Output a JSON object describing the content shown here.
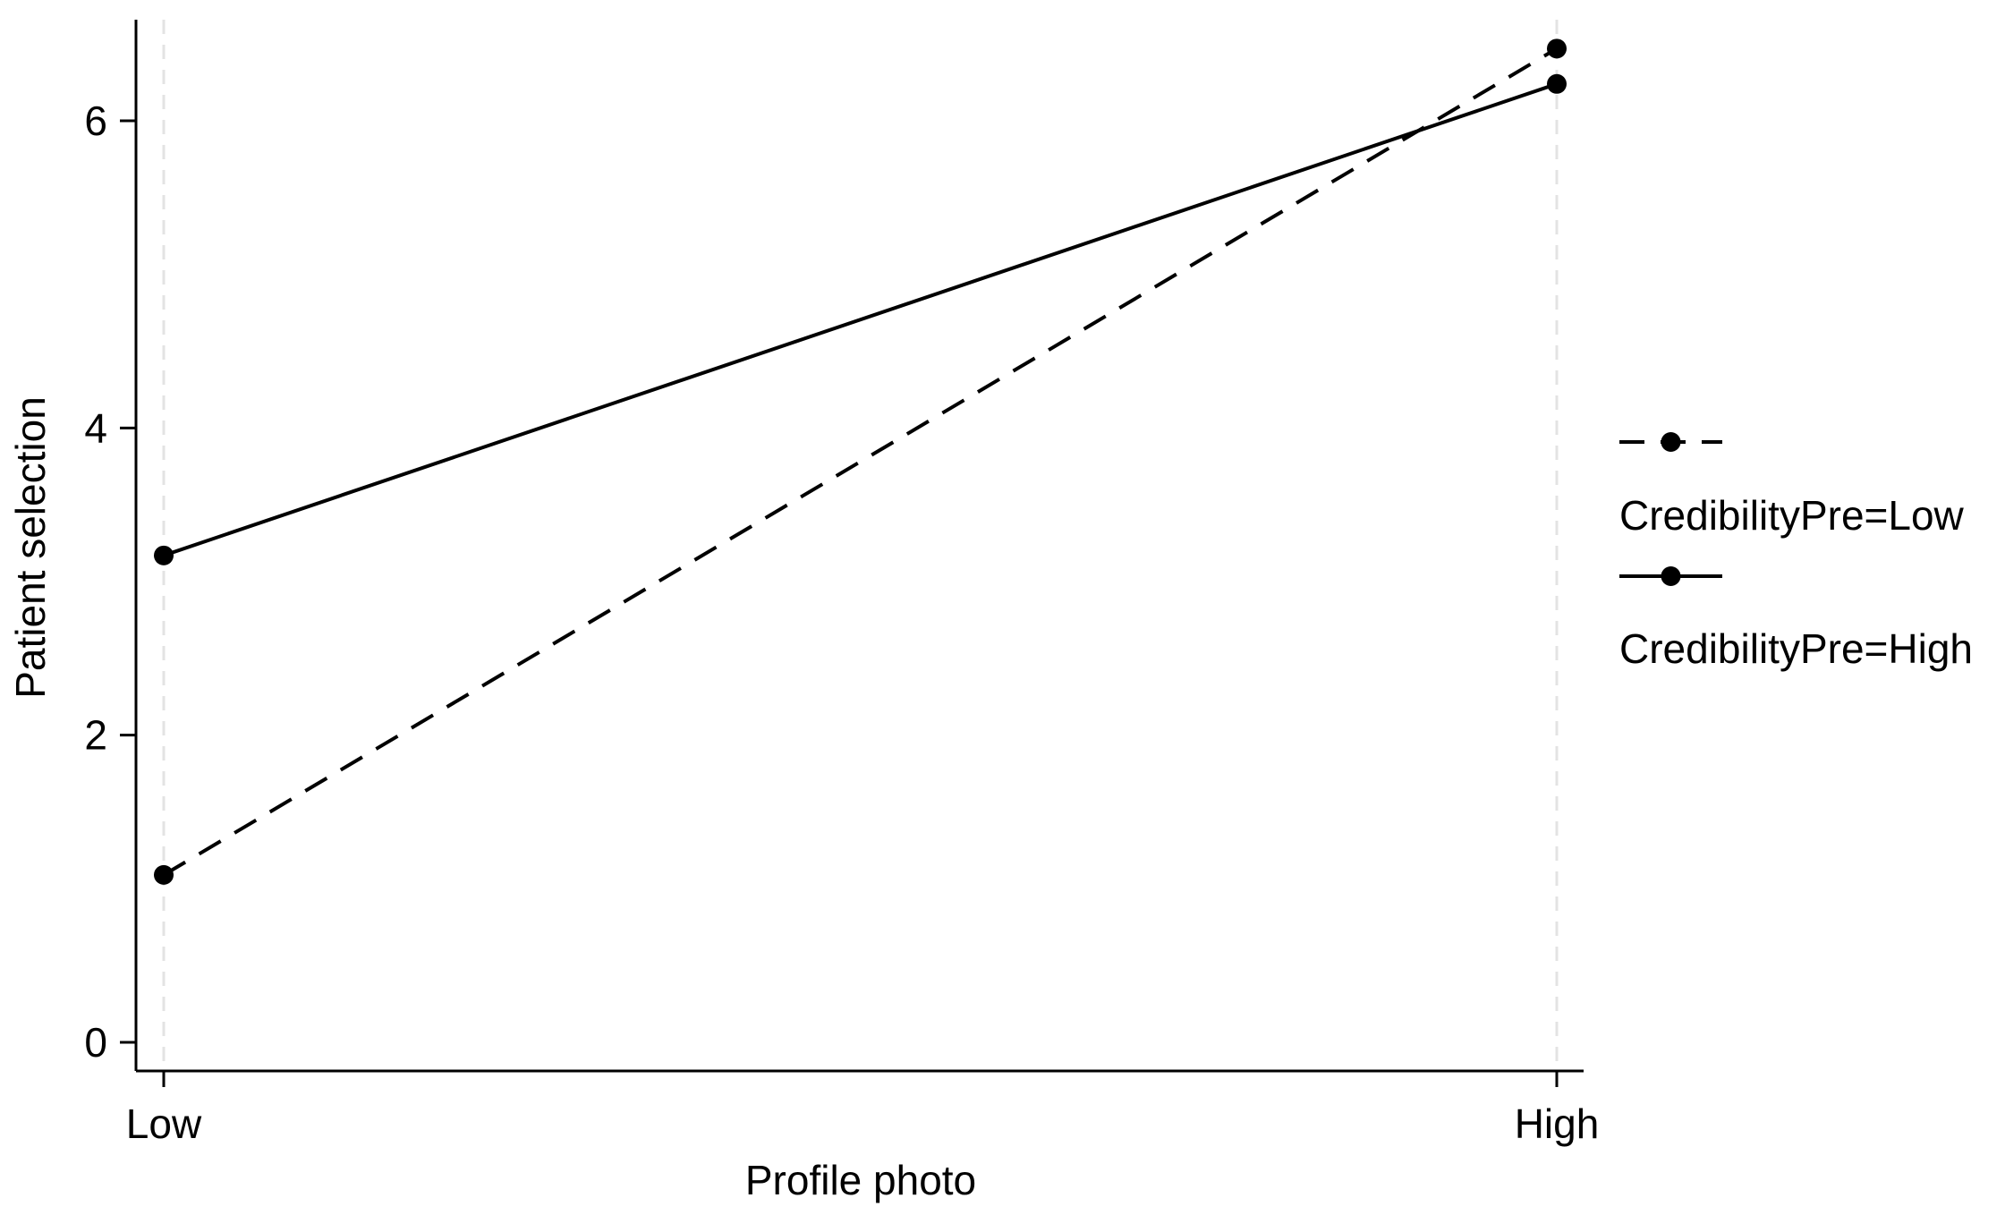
{
  "chart_data": {
    "type": "line",
    "title": "",
    "xlabel": "Profile photo",
    "ylabel": "Patient selection",
    "categories": [
      "Low",
      "High"
    ],
    "ylim": [
      0,
      6.6
    ],
    "yticks": [
      0,
      2,
      4,
      6
    ],
    "grid": "dashed vertical lines at each category",
    "legend_position": "right",
    "series": [
      {
        "name": "CredibilityPre=Low",
        "line_style": "dashed",
        "color": "#000000",
        "values": [
          1.09,
          6.47
        ]
      },
      {
        "name": "CredibilityPre=High",
        "line_style": "solid",
        "color": "#000000",
        "values": [
          3.17,
          6.24
        ]
      }
    ]
  }
}
